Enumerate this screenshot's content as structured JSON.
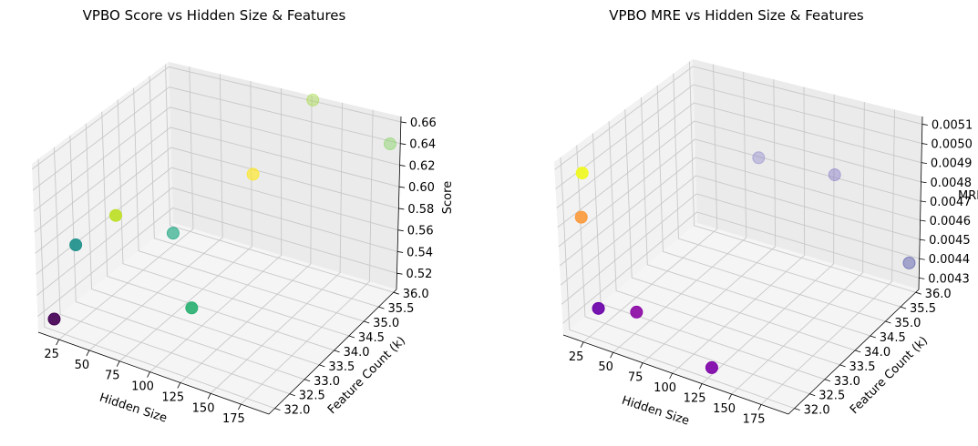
{
  "chart_data": [
    {
      "type": "scatter",
      "title": "VPBO Score vs Hidden Size & Features",
      "xlabel": "Hidden Size",
      "ylabel": "Feature Count (k)",
      "zlabel": "Score",
      "x_ticks": [
        "25",
        "50",
        "75",
        "100",
        "125",
        "150",
        "175"
      ],
      "y_ticks": [
        "32.0",
        "32.5",
        "33.0",
        "33.5",
        "34.0",
        "34.5",
        "35.0",
        "35.5",
        "36.0"
      ],
      "z_ticks": [
        "0.52",
        "0.54",
        "0.56",
        "0.58",
        "0.60",
        "0.62",
        "0.64",
        "0.66"
      ],
      "points": [
        {
          "x": 16,
          "y": 32,
          "z": 0.515,
          "color": "#440154"
        },
        {
          "x": 32,
          "y": 32,
          "z": 0.59,
          "color": "#21918c"
        },
        {
          "x": 64,
          "y": 32,
          "z": 0.63,
          "color": "#bddf26"
        },
        {
          "x": 64,
          "y": 34,
          "z": 0.56,
          "color": "#22a884"
        },
        {
          "x": 128,
          "y": 34,
          "z": 0.64,
          "color": "#fde725"
        },
        {
          "x": 128,
          "y": 32,
          "z": 0.57,
          "color": "#2ab072"
        },
        {
          "x": 128,
          "y": 36,
          "z": 0.655,
          "color": "#a0da39"
        },
        {
          "x": 192,
          "y": 36,
          "z": 0.64,
          "color": "#7ad151"
        }
      ]
    },
    {
      "type": "scatter",
      "title": "VPBO MRE vs Hidden Size & Features",
      "xlabel": "Hidden Size",
      "ylabel": "Feature Count (k)",
      "zlabel": "MRE",
      "x_ticks": [
        "25",
        "50",
        "75",
        "100",
        "125",
        "150",
        "175"
      ],
      "y_ticks": [
        "32.0",
        "32.5",
        "33.0",
        "33.5",
        "34.0",
        "34.5",
        "35.0",
        "35.5",
        "36.0"
      ],
      "z_ticks": [
        "0.0043",
        "0.0044",
        "0.0045",
        "0.0046",
        "0.0047",
        "0.0048",
        "0.0049",
        "0.0050",
        "0.0051"
      ],
      "points": [
        {
          "x": 16,
          "y": 32,
          "z": 0.00507,
          "color": "#f0f921"
        },
        {
          "x": 16,
          "y": 32,
          "z": 0.00484,
          "color": "#fb9b3e"
        },
        {
          "x": 32,
          "y": 32,
          "z": 0.0044,
          "color": "#6a00a8"
        },
        {
          "x": 64,
          "y": 32,
          "z": 0.00445,
          "color": "#8b0aa5"
        },
        {
          "x": 128,
          "y": 32,
          "z": 0.0043,
          "color": "#7e03a8"
        },
        {
          "x": 128,
          "y": 36,
          "z": 0.0047,
          "color": "#7b70c4"
        },
        {
          "x": 192,
          "y": 36,
          "z": 0.00438,
          "color": "#3b3fa0"
        },
        {
          "x": 64,
          "y": 36,
          "z": 0.00465,
          "color": "#8a84cc"
        }
      ]
    }
  ]
}
